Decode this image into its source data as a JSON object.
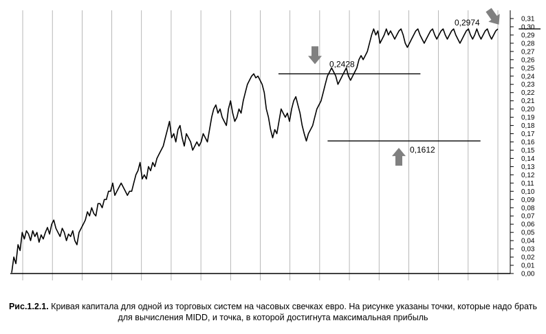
{
  "chart_data": {
    "type": "line",
    "title": "",
    "xlabel": "",
    "ylabel": "",
    "ylim": [
      0,
      0.31
    ],
    "yticks": [
      "0,00",
      "0,01",
      "0,02",
      "0,03",
      "0,04",
      "0,05",
      "0,06",
      "0,07",
      "0,08",
      "0,09",
      "0,10",
      "0,11",
      "0,12",
      "0,13",
      "0,14",
      "0,15",
      "0,16",
      "0,17",
      "0,18",
      "0,19",
      "0,20",
      "0,21",
      "0,22",
      "0,23",
      "0,24",
      "0,25",
      "0,26",
      "0,27",
      "0,28",
      "0,29",
      "0,30",
      "0,31"
    ],
    "grid": {
      "vertical": true,
      "horizontal": false,
      "vertical_lines": 17
    },
    "legend": "none",
    "series": [
      {
        "n_points": 240,
        "values": [
          0.001,
          0.02,
          0.012,
          0.035,
          0.028,
          0.05,
          0.042,
          0.052,
          0.048,
          0.04,
          0.052,
          0.045,
          0.05,
          0.038,
          0.047,
          0.042,
          0.05,
          0.056,
          0.048,
          0.06,
          0.065,
          0.055,
          0.05,
          0.045,
          0.055,
          0.05,
          0.04,
          0.048,
          0.045,
          0.052,
          0.04,
          0.035,
          0.05,
          0.055,
          0.06,
          0.065,
          0.075,
          0.07,
          0.08,
          0.073,
          0.07,
          0.085,
          0.085,
          0.08,
          0.09,
          0.09,
          0.1,
          0.1,
          0.11,
          0.095,
          0.1,
          0.105,
          0.11,
          0.105,
          0.1,
          0.095,
          0.1,
          0.1,
          0.11,
          0.12,
          0.125,
          0.135,
          0.115,
          0.12,
          0.115,
          0.13,
          0.125,
          0.135,
          0.13,
          0.14,
          0.145,
          0.15,
          0.155,
          0.165,
          0.175,
          0.185,
          0.165,
          0.17,
          0.16,
          0.175,
          0.18,
          0.165,
          0.155,
          0.17,
          0.165,
          0.16,
          0.15,
          0.155,
          0.16,
          0.155,
          0.16,
          0.17,
          0.165,
          0.16,
          0.175,
          0.19,
          0.2,
          0.205,
          0.195,
          0.2,
          0.19,
          0.185,
          0.18,
          0.2,
          0.21,
          0.195,
          0.185,
          0.19,
          0.2,
          0.195,
          0.21,
          0.22,
          0.23,
          0.235,
          0.24,
          0.2428,
          0.238,
          0.24,
          0.235,
          0.23,
          0.22,
          0.2,
          0.19,
          0.175,
          0.165,
          0.175,
          0.17,
          0.185,
          0.2,
          0.195,
          0.19,
          0.195,
          0.185,
          0.2,
          0.21,
          0.215,
          0.205,
          0.195,
          0.18,
          0.17,
          0.1612,
          0.17,
          0.175,
          0.18,
          0.19,
          0.2,
          0.205,
          0.21,
          0.22,
          0.23,
          0.24,
          0.245,
          0.25,
          0.245,
          0.24,
          0.23,
          0.235,
          0.24,
          0.245,
          0.25,
          0.24,
          0.235,
          0.24,
          0.245,
          0.25,
          0.26,
          0.265,
          0.26,
          0.265,
          0.27,
          0.28,
          0.29,
          0.2974,
          0.29,
          0.295,
          0.28,
          0.285,
          0.29,
          0.2974,
          0.29,
          0.295,
          0.29,
          0.285,
          0.29,
          0.295,
          0.2974,
          0.29,
          0.28,
          0.275,
          0.28,
          0.285,
          0.29,
          0.295,
          0.2974,
          0.29,
          0.285,
          0.28,
          0.285,
          0.29,
          0.295,
          0.2974,
          0.29,
          0.285,
          0.29,
          0.295,
          0.2974,
          0.29,
          0.285,
          0.29,
          0.295,
          0.2974,
          0.29,
          0.285,
          0.28,
          0.285,
          0.29,
          0.295,
          0.2974,
          0.29,
          0.285,
          0.29,
          0.2974,
          0.29,
          0.285,
          0.29,
          0.295,
          0.2974,
          0.29,
          0.285,
          0.29,
          0.295,
          0.2974
        ]
      }
    ],
    "annotations": [
      {
        "label": "0,2428",
        "value": 0.2428,
        "marker": "down-arrow",
        "line_from": 0.51,
        "line_to": 0.77
      },
      {
        "label": "0,1612",
        "value": 0.1612,
        "marker": "up-arrow",
        "line_from": 0.6,
        "line_to": 0.88
      },
      {
        "label": "0,2974",
        "value": 0.2974,
        "marker": "down-arrow",
        "line_from": 0.95,
        "line_to": 0.99
      }
    ],
    "colors": {
      "line": "#000000",
      "grid": "#999999",
      "arrow": "#808080"
    }
  },
  "caption": {
    "lead": "Рис.1.2.1.",
    "text": " Кривая капитала для одной из торговых систем на часовых свечках евро. На рисунке указаны точки, которые надо брать для вычисления MIDD, и точка, в которой достигнута максимальная прибыль"
  }
}
